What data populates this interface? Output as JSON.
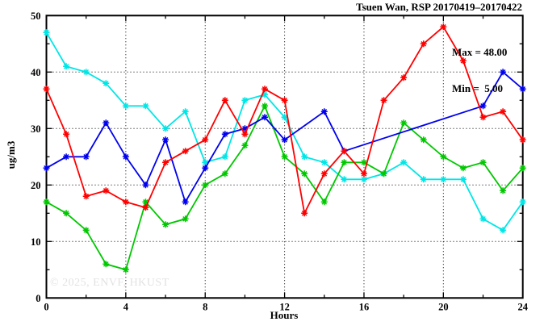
{
  "chart_data": {
    "type": "line",
    "title": "Tsuen Wan, RSP 20170419–20170422",
    "xlabel": "Hours",
    "ylabel": "ug/m3",
    "xlim": [
      0,
      24
    ],
    "ylim": [
      0,
      50
    ],
    "x_major_ticks": [
      0,
      4,
      8,
      12,
      16,
      20,
      24
    ],
    "x_minor_ticks": [
      2,
      6,
      10,
      14,
      18,
      22
    ],
    "y_major_ticks": [
      0,
      10,
      20,
      30,
      40,
      50
    ],
    "y_minor_ticks": [
      5,
      15,
      25,
      35,
      45
    ],
    "grid": "dotted at major ticks, framed box, inward ticks on all four sides",
    "legend": "none",
    "marker": "asterisk",
    "annotations": {
      "max_label": "Max = 48.00",
      "min_label": "Min =  5.00",
      "max_value": 48.0,
      "min_value": 5.0
    },
    "watermark": "© 2025, ENVF, HKUST",
    "series": [
      {
        "name": "cyan",
        "color": "#00e6e6",
        "x": [
          0,
          1,
          2,
          3,
          4,
          5,
          6,
          7,
          8,
          9,
          10,
          11,
          12,
          13,
          14,
          15,
          16,
          17,
          18,
          19,
          20,
          21,
          22,
          23,
          24
        ],
        "values": [
          47,
          41,
          40,
          38,
          34,
          34,
          30,
          33,
          24,
          25,
          35,
          36,
          32,
          25,
          24,
          21,
          21,
          22,
          24,
          21,
          21,
          21,
          14,
          12,
          17
        ]
      },
      {
        "name": "green",
        "color": "#00c800",
        "x": [
          0,
          1,
          2,
          3,
          4,
          5,
          6,
          7,
          8,
          9,
          10,
          11,
          12,
          13,
          14,
          15,
          16,
          17,
          18,
          19,
          20,
          21,
          22,
          23,
          24
        ],
        "values": [
          17,
          15,
          12,
          6,
          5,
          17,
          13,
          14,
          20,
          22,
          27,
          34,
          25,
          22,
          17,
          24,
          24,
          22,
          31,
          28,
          25,
          23,
          24,
          19,
          23
        ]
      },
      {
        "name": "blue",
        "color": "#0000ee",
        "x": [
          0,
          1,
          2,
          3,
          4,
          5,
          6,
          7,
          8,
          9,
          10,
          11,
          12,
          14,
          15,
          22,
          23,
          24
        ],
        "values": [
          23,
          25,
          25,
          31,
          25,
          20,
          28,
          17,
          23,
          29,
          30,
          32,
          28,
          33,
          26,
          34,
          40,
          37
        ]
      },
      {
        "name": "red",
        "color": "#ff0000",
        "x": [
          0,
          1,
          2,
          3,
          4,
          5,
          6,
          7,
          8,
          9,
          10,
          11,
          12,
          13,
          14,
          15,
          16,
          17,
          18,
          19,
          20,
          21,
          22,
          23,
          24
        ],
        "values": [
          37,
          29,
          18,
          19,
          17,
          16,
          24,
          26,
          28,
          35,
          29,
          37,
          35,
          15,
          22,
          26,
          22,
          35,
          39,
          45,
          48,
          42,
          32,
          33,
          28
        ]
      }
    ]
  }
}
